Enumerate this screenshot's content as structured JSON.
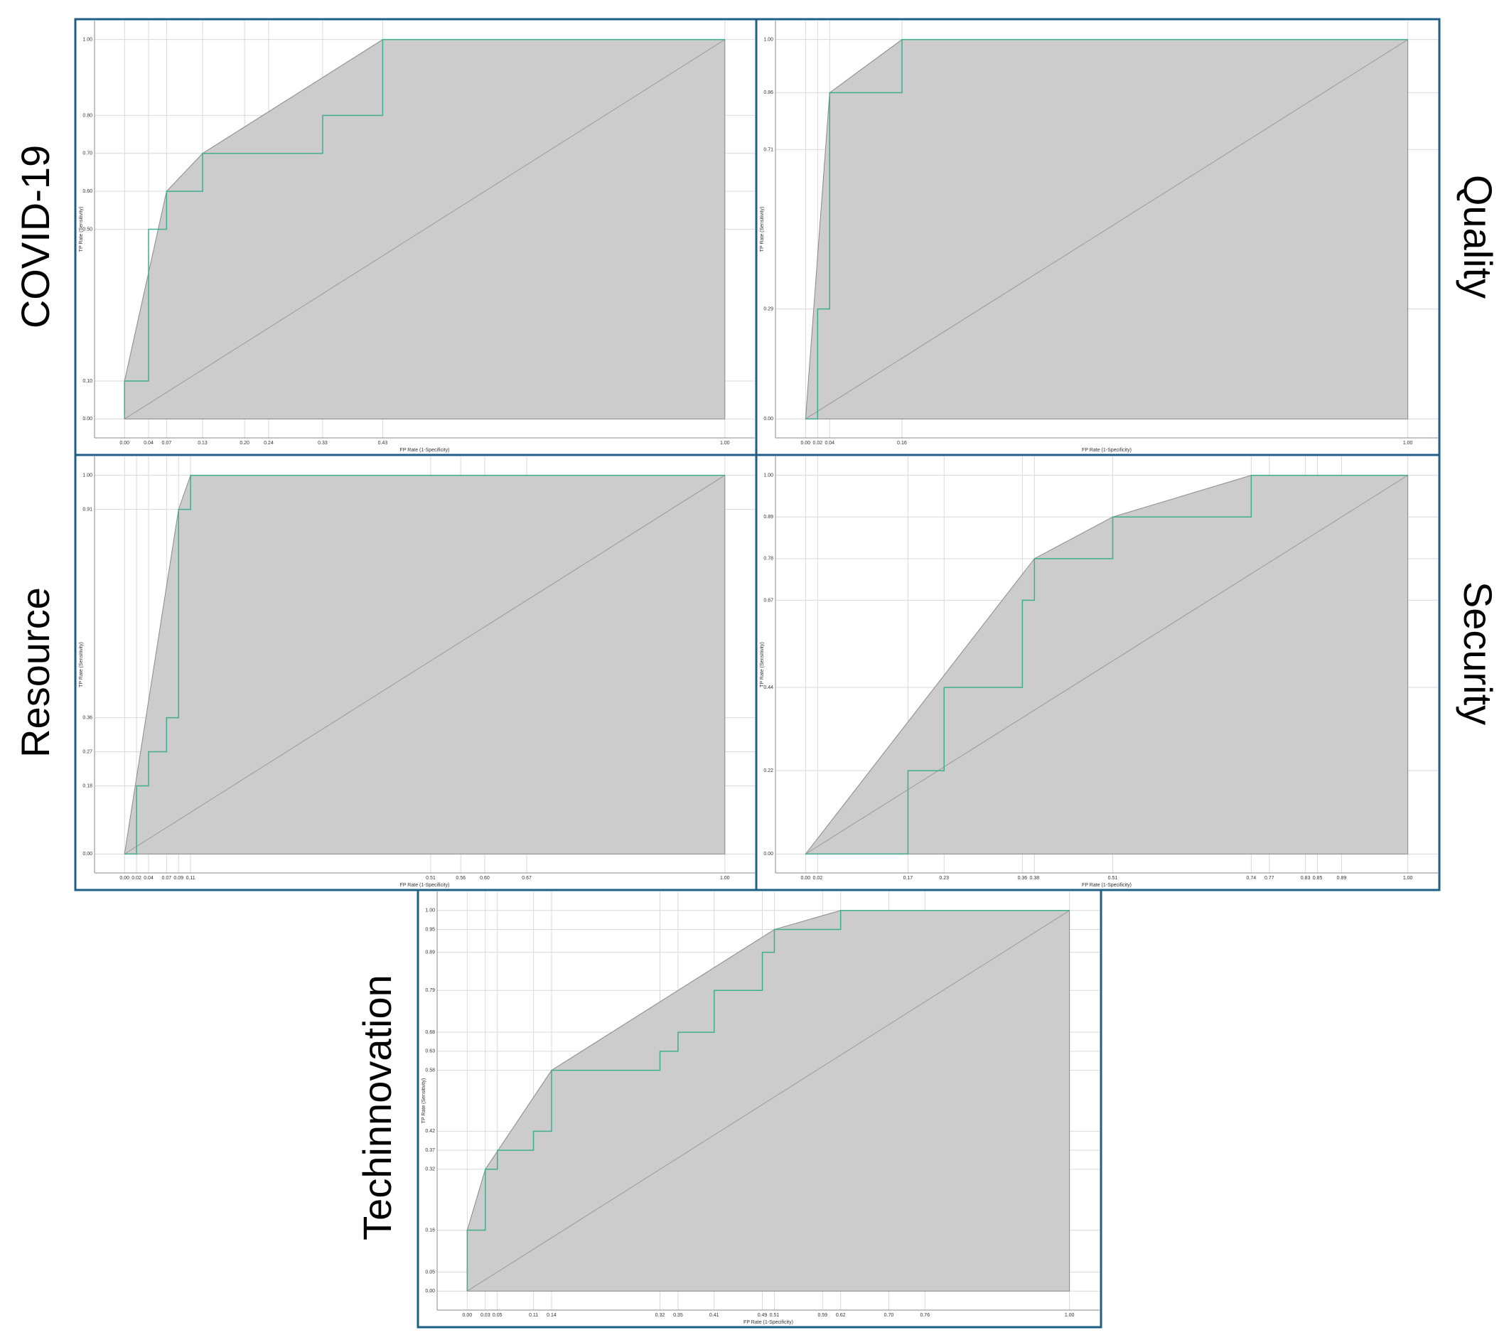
{
  "chart_data": [
    {
      "type": "roc",
      "title": "COVID-19",
      "x_label": "FP Rate (1-Specificity)",
      "y_label": "TP Rate (Sensitivity)",
      "xlim": [
        -0.05,
        1.05
      ],
      "ylim": [
        -0.05,
        1.05
      ],
      "grid": true,
      "xticks": [
        {
          "value": 0,
          "label": "0.00"
        },
        0.04,
        0.07,
        0.13,
        {
          "value": 0.2,
          "label": "0.20"
        },
        0.24,
        0.33,
        0.43,
        {
          "value": 1,
          "label": "1.00"
        }
      ],
      "yticks": [
        {
          "value": 0,
          "label": "0.00"
        },
        {
          "value": 0.1,
          "label": "0.10"
        },
        {
          "value": 0.5,
          "label": "0.50"
        },
        {
          "value": 0.6,
          "label": "0.60"
        },
        {
          "value": 0.7,
          "label": "0.70"
        },
        {
          "value": 0.8,
          "label": "0.80"
        },
        {
          "value": 1,
          "label": "1.00"
        }
      ],
      "series": [
        {
          "kind": "area",
          "color": "#cccccc",
          "x": [
            0,
            0,
            0.07,
            0.13,
            0.43,
            1,
            1
          ],
          "values": [
            0,
            0.1,
            0.6,
            0.7,
            1,
            1,
            0
          ]
        },
        {
          "kind": "line",
          "color": "#3fae8f",
          "x": [
            0,
            0,
            0.04,
            0.04,
            0.07,
            0.07,
            0.13,
            0.13,
            0.33,
            0.33,
            0.43,
            0.43,
            1
          ],
          "values": [
            0,
            0.1,
            0.1,
            0.5,
            0.5,
            0.6,
            0.6,
            0.7,
            0.7,
            0.8,
            0.8,
            1,
            1
          ]
        }
      ]
    },
    {
      "type": "roc",
      "title": "Quality",
      "x_label": "FP Rate (1-Specificity)",
      "y_label": "TP Rate (Sensitivity)",
      "xlim": [
        -0.05,
        1.05
      ],
      "ylim": [
        -0.05,
        1.05
      ],
      "grid": true,
      "xticks": [
        {
          "value": 0,
          "label": "0.00"
        },
        0.02,
        0.04,
        0.16,
        {
          "value": 1,
          "label": "1.00"
        }
      ],
      "yticks": [
        {
          "value": 0,
          "label": "0.00"
        },
        0.29,
        0.71,
        0.86,
        {
          "value": 1,
          "label": "1.00"
        }
      ],
      "series": [
        {
          "kind": "area",
          "color": "#cccccc",
          "x": [
            0,
            0.04,
            0.16,
            1,
            1
          ],
          "values": [
            0,
            0.86,
            1,
            1,
            0
          ]
        },
        {
          "kind": "line",
          "color": "#3fae8f",
          "x": [
            0,
            0.02,
            0.02,
            0.04,
            0.04,
            0.16,
            0.16,
            1
          ],
          "values": [
            0,
            0,
            0.29,
            0.29,
            0.86,
            0.86,
            1,
            1
          ]
        }
      ]
    },
    {
      "type": "roc",
      "title": "Resource",
      "x_label": "FP Rate (1-Specificity)",
      "y_label": "TP Rate (Sensitivity)",
      "xlim": [
        -0.05,
        1.05
      ],
      "ylim": [
        -0.05,
        1.05
      ],
      "grid": true,
      "xticks": [
        {
          "value": 0,
          "label": "0.00"
        },
        0.02,
        0.04,
        0.07,
        0.09,
        0.11,
        0.51,
        0.56,
        {
          "value": 0.6,
          "label": "0.60"
        },
        0.67,
        {
          "value": 1,
          "label": "1.00"
        }
      ],
      "yticks": [
        {
          "value": 0,
          "label": "0.00"
        },
        0.18,
        0.27,
        0.36,
        0.91,
        {
          "value": 1,
          "label": "1.00"
        }
      ],
      "series": [
        {
          "kind": "area",
          "color": "#cccccc",
          "x": [
            0,
            0.09,
            0.11,
            1,
            1
          ],
          "values": [
            0,
            0.91,
            1,
            1,
            0
          ]
        },
        {
          "kind": "line",
          "color": "#3fae8f",
          "x": [
            0,
            0.02,
            0.02,
            0.04,
            0.04,
            0.07,
            0.07,
            0.09,
            0.09,
            0.11,
            0.11,
            1
          ],
          "values": [
            0,
            0,
            0.18,
            0.18,
            0.27,
            0.27,
            0.36,
            0.36,
            0.91,
            0.91,
            1,
            1
          ]
        }
      ]
    },
    {
      "type": "roc",
      "title": "Security",
      "x_label": "FP Rate (1-Specificity)",
      "y_label": "TP Rate (Sensitivity)",
      "xlim": [
        -0.05,
        1.05
      ],
      "ylim": [
        -0.05,
        1.05
      ],
      "grid": true,
      "xticks": [
        {
          "value": 0,
          "label": "0.00"
        },
        0.02,
        0.17,
        0.23,
        0.36,
        0.38,
        0.51,
        0.74,
        0.77,
        0.83,
        0.85,
        0.89,
        {
          "value": 1,
          "label": "1.00"
        }
      ],
      "yticks": [
        {
          "value": 0,
          "label": "0.00"
        },
        0.22,
        0.44,
        0.67,
        0.78,
        0.89,
        {
          "value": 1,
          "label": "1.00"
        }
      ],
      "series": [
        {
          "kind": "area",
          "color": "#cccccc",
          "x": [
            0,
            0.38,
            0.51,
            0.74,
            1,
            1
          ],
          "values": [
            0,
            0.78,
            0.89,
            1,
            1,
            0
          ]
        },
        {
          "kind": "line",
          "color": "#3fae8f",
          "x": [
            0,
            0.17,
            0.17,
            0.23,
            0.23,
            0.36,
            0.36,
            0.38,
            0.38,
            0.51,
            0.51,
            0.74,
            0.74,
            1
          ],
          "values": [
            0,
            0,
            0.22,
            0.22,
            0.44,
            0.44,
            0.67,
            0.67,
            0.78,
            0.78,
            0.89,
            0.89,
            1,
            1
          ]
        }
      ]
    },
    {
      "type": "roc",
      "title": "Techinnovation",
      "x_label": "FP Rate (1-Specificity)",
      "y_label": "TP Rate (Sensitivity)",
      "xlim": [
        -0.05,
        1.05
      ],
      "ylim": [
        -0.05,
        1.05
      ],
      "grid": true,
      "xticks": [
        {
          "value": 0,
          "label": "0.00"
        },
        0.03,
        0.05,
        0.11,
        0.14,
        0.32,
        0.35,
        0.41,
        0.49,
        0.51,
        0.59,
        0.62,
        {
          "value": 0.7,
          "label": "0.70"
        },
        0.76,
        {
          "value": 1,
          "label": "1.00"
        }
      ],
      "yticks": [
        {
          "value": 0,
          "label": "0.00"
        },
        0.05,
        0.16,
        0.32,
        0.37,
        0.42,
        0.58,
        0.63,
        0.68,
        0.79,
        0.89,
        0.95,
        {
          "value": 1,
          "label": "1.00"
        }
      ],
      "series": [
        {
          "kind": "area",
          "color": "#cccccc",
          "x": [
            0,
            0,
            0.03,
            0.14,
            0.51,
            0.62,
            1,
            1
          ],
          "values": [
            0,
            0.16,
            0.32,
            0.58,
            0.95,
            1,
            1,
            0
          ]
        },
        {
          "kind": "line",
          "color": "#3fae8f",
          "x": [
            0,
            0,
            0.03,
            0.03,
            0.05,
            0.05,
            0.11,
            0.11,
            0.14,
            0.14,
            0.32,
            0.32,
            0.35,
            0.35,
            0.41,
            0.41,
            0.49,
            0.49,
            0.51,
            0.51,
            0.62,
            0.62,
            1
          ],
          "values": [
            0,
            0.16,
            0.16,
            0.32,
            0.32,
            0.37,
            0.37,
            0.42,
            0.42,
            0.58,
            0.58,
            0.63,
            0.63,
            0.68,
            0.68,
            0.79,
            0.79,
            0.89,
            0.89,
            0.95,
            0.95,
            1,
            1
          ]
        }
      ]
    }
  ]
}
